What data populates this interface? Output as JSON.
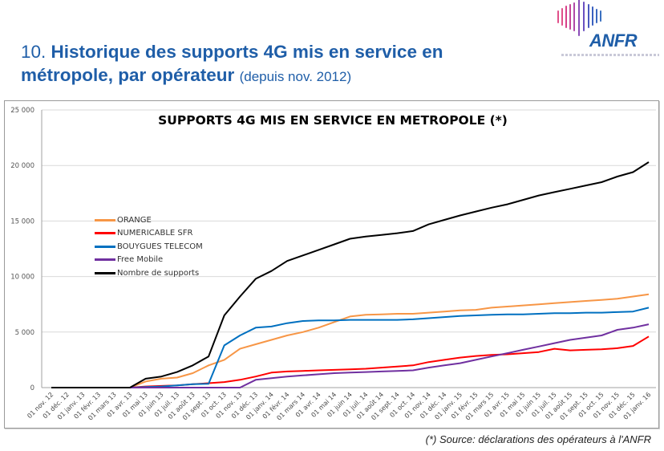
{
  "header": {
    "number": "10.",
    "title_bold": "Historique des supports 4G mis en service en métropole, par opérateur",
    "title_suffix": "(depuis nov. 2012)"
  },
  "logo": {
    "text": "ANFR",
    "brand_color": "#1f5ea8"
  },
  "footer": {
    "source": "(*) Source: déclarations des opérateurs à l'ANFR"
  },
  "chart_data": {
    "type": "line",
    "title": "SUPPORTS 4G MIS EN SERVICE EN METROPOLE (*)",
    "xlabel": "",
    "ylabel": "",
    "ylim": [
      0,
      25000
    ],
    "yticks": [
      0,
      5000,
      10000,
      15000,
      20000,
      25000
    ],
    "ytick_labels": [
      "0",
      "5 000",
      "10 000",
      "15 000",
      "20 000",
      "25 000"
    ],
    "grid": true,
    "legend_position": "left",
    "categories": [
      "01 nov. 12",
      "01 déc. 12",
      "01 janv. 13",
      "01 févr. 13",
      "01 mars 13",
      "01 avr. 13",
      "01 mai 13",
      "01 juin 13",
      "01 juil. 13",
      "01 août 13",
      "01 sept. 13",
      "01 oct. 13",
      "01 nov. 13",
      "01 déc. 13",
      "01 janv. 14",
      "01 févr. 14",
      "01 mars 14",
      "01 avr. 14",
      "01 mai 14",
      "01 juin 14",
      "01 juil. 14",
      "01 août 14",
      "01 sept. 14",
      "01 oct. 14",
      "01 nov. 14",
      "01 déc. 14",
      "01 janv. 15",
      "01 févr. 15",
      "01 mars 15",
      "01 avr. 15",
      "01 mai 15",
      "01 juin 15",
      "01 juil. 15",
      "01 août 15",
      "01 sept. 15",
      "01 oct. 15",
      "01 nov. 15",
      "01 déc. 15",
      "01 janv. 16"
    ],
    "series": [
      {
        "name": "ORANGE",
        "color": "#f79646",
        "values": [
          0,
          0,
          0,
          0,
          0,
          0,
          550,
          800,
          900,
          1300,
          2000,
          2500,
          3500,
          3900,
          4300,
          4700,
          5000,
          5400,
          5900,
          6400,
          6550,
          6600,
          6650,
          6650,
          6750,
          6850,
          6950,
          7000,
          7200,
          7300,
          7400,
          7500,
          7600,
          7700,
          7800,
          7900,
          8000,
          8200,
          8400
        ]
      },
      {
        "name": "NUMERICABLE SFR",
        "color": "#ff0000",
        "values": [
          0,
          0,
          0,
          0,
          0,
          0,
          100,
          150,
          200,
          300,
          400,
          500,
          700,
          1000,
          1350,
          1450,
          1500,
          1550,
          1600,
          1650,
          1700,
          1800,
          1900,
          2000,
          2300,
          2500,
          2700,
          2850,
          2950,
          3000,
          3100,
          3200,
          3500,
          3350,
          3400,
          3450,
          3550,
          3750,
          4600
        ]
      },
      {
        "name": "BOUYGUES TELECOM",
        "color": "#0070c0",
        "values": [
          0,
          0,
          0,
          0,
          0,
          0,
          50,
          100,
          200,
          300,
          350,
          3800,
          4700,
          5400,
          5500,
          5800,
          6000,
          6050,
          6050,
          6100,
          6100,
          6100,
          6100,
          6150,
          6250,
          6350,
          6450,
          6500,
          6550,
          6600,
          6600,
          6650,
          6700,
          6700,
          6750,
          6750,
          6800,
          6850,
          7200
        ]
      },
      {
        "name": "Free Mobile",
        "color": "#7030a0",
        "values": [
          0,
          0,
          0,
          0,
          0,
          0,
          0,
          0,
          0,
          0,
          0,
          0,
          0,
          700,
          850,
          1000,
          1100,
          1200,
          1300,
          1350,
          1400,
          1450,
          1500,
          1550,
          1800,
          2000,
          2200,
          2500,
          2800,
          3100,
          3400,
          3700,
          4000,
          4300,
          4500,
          4700,
          5200,
          5400,
          5700
        ]
      },
      {
        "name": "Nombre de supports",
        "color": "#000000",
        "values": [
          0,
          0,
          0,
          0,
          0,
          0,
          800,
          1000,
          1400,
          2000,
          2800,
          6500,
          8200,
          9800,
          10500,
          11400,
          11900,
          12400,
          12900,
          13400,
          13600,
          13750,
          13900,
          14100,
          14700,
          15100,
          15500,
          15850,
          16200,
          16500,
          16900,
          17300,
          17600,
          17900,
          18200,
          18500,
          19000,
          19400,
          20300
        ]
      }
    ]
  }
}
